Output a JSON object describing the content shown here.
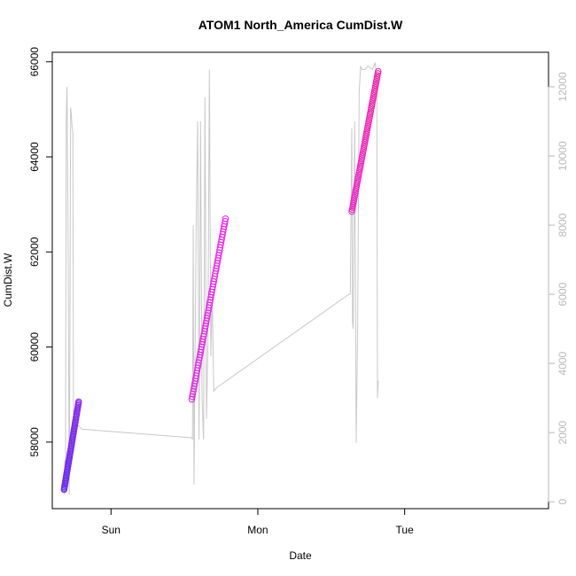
{
  "chart_data": {
    "type": "scatter",
    "title": "ATOM1 North_America CumDist.W",
    "xlabel": "Date",
    "ylabel": "CumDist.W",
    "x_ticks": [
      {
        "label": "Sun",
        "value": 1.0
      },
      {
        "label": "Mon",
        "value": 2.0
      },
      {
        "label": "Tue",
        "value": 3.0
      }
    ],
    "xlim": [
      0.6,
      3.98
    ],
    "y_left": {
      "ylim": [
        56600,
        66200
      ],
      "ticks": [
        58000,
        60000,
        62000,
        64000,
        66000
      ]
    },
    "y_right": {
      "ylim": [
        -200,
        13000
      ],
      "ticks": [
        0,
        2000,
        4000,
        6000,
        8000,
        10000,
        12000
      ],
      "color": "#b8b8b8"
    },
    "grid": false,
    "point_segments": [
      {
        "x_start": 0.68,
        "x_end": 0.78,
        "y_start": 57000,
        "y_end": 58850,
        "color_start": "#6a2cf0",
        "color_end": "#8a2cf0"
      },
      {
        "x_start": 1.55,
        "x_end": 1.78,
        "y_start": 58900,
        "y_end": 62700,
        "color_start": "#e020e6",
        "color_end": "#f020f0"
      },
      {
        "x_start": 2.64,
        "x_end": 2.82,
        "y_start": 62850,
        "y_end": 65800,
        "color_start": "#f020c8",
        "color_end": "#f020a8"
      }
    ],
    "background_line": {
      "color": "#c8c8c8",
      "points": [
        [
          0.68,
          200
        ],
        [
          0.685,
          1200
        ],
        [
          0.69,
          1000
        ],
        [
          0.695,
          11000
        ],
        [
          0.7,
          12000
        ],
        [
          0.705,
          9500
        ],
        [
          0.71,
          6000
        ],
        [
          0.715,
          200
        ],
        [
          0.72,
          4500
        ],
        [
          0.725,
          11400
        ],
        [
          0.73,
          11200
        ],
        [
          0.735,
          10800
        ],
        [
          0.74,
          10700
        ],
        [
          0.745,
          2000
        ],
        [
          0.75,
          2200
        ],
        [
          0.78,
          2200
        ],
        [
          0.8,
          2100
        ],
        [
          1.55,
          1850
        ],
        [
          1.555,
          1800
        ],
        [
          1.56,
          8000
        ],
        [
          1.565,
          500
        ],
        [
          1.57,
          3000
        ],
        [
          1.58,
          8000
        ],
        [
          1.59,
          11000
        ],
        [
          1.6,
          1800
        ],
        [
          1.61,
          11000
        ],
        [
          1.62,
          3000
        ],
        [
          1.63,
          1800
        ],
        [
          1.64,
          11700
        ],
        [
          1.65,
          2400
        ],
        [
          1.66,
          4500
        ],
        [
          1.67,
          12500
        ],
        [
          1.68,
          4200
        ],
        [
          1.69,
          6000
        ],
        [
          1.7,
          3200
        ],
        [
          1.72,
          3300
        ],
        [
          2.62,
          6000
        ],
        [
          2.63,
          6000
        ],
        [
          2.635,
          8500
        ],
        [
          2.64,
          10800
        ],
        [
          2.645,
          5200
        ],
        [
          2.65,
          5000
        ],
        [
          2.66,
          11000
        ],
        [
          2.67,
          1700
        ],
        [
          2.68,
          5000
        ],
        [
          2.69,
          11800
        ],
        [
          2.7,
          12600
        ],
        [
          2.71,
          12500
        ],
        [
          2.73,
          12500
        ],
        [
          2.75,
          12600
        ],
        [
          2.78,
          12500
        ],
        [
          2.8,
          12700
        ],
        [
          2.81,
          12000
        ],
        [
          2.815,
          3000
        ],
        [
          2.82,
          3500
        ]
      ]
    }
  }
}
